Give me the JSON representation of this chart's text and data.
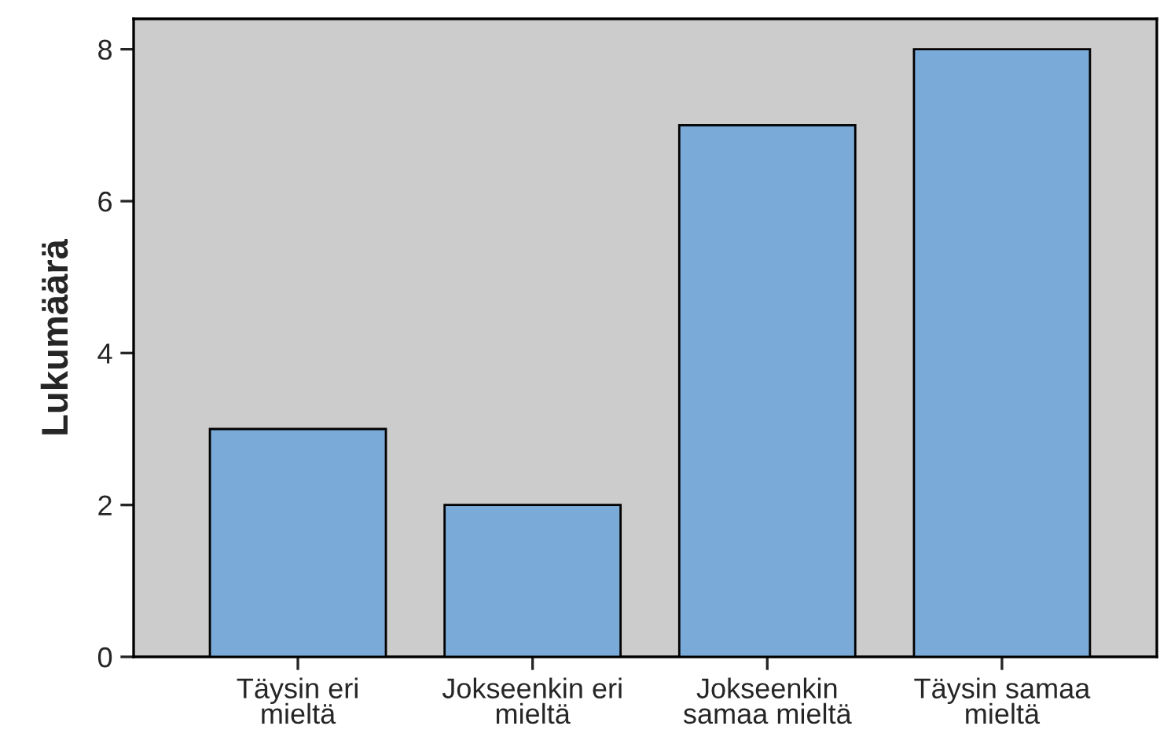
{
  "chart_data": {
    "type": "bar",
    "ylabel": "Lukumäärä",
    "categories": [
      "Täysin eri\nmieltä",
      "Jokseenkin eri\nmieltä",
      "Jokseenkin\nsamaa mieltä",
      "Täysin samaa\nmieltä"
    ],
    "values": [
      3,
      2,
      7,
      8
    ],
    "color": "#7aaad8",
    "ylim": [
      0,
      8.4
    ],
    "yticks": [
      0,
      2,
      4,
      6,
      8
    ]
  }
}
